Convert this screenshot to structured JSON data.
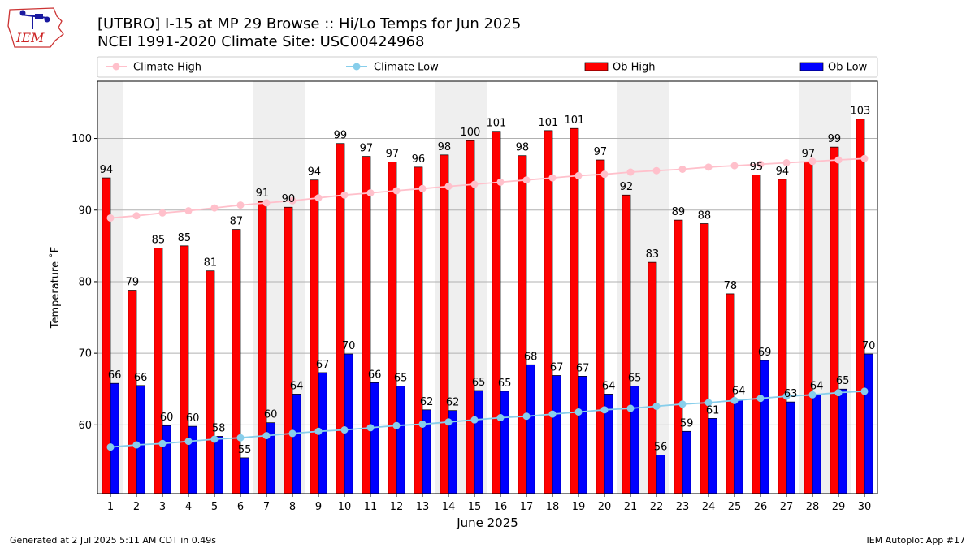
{
  "logo": {
    "text": "IEM"
  },
  "chart_data": {
    "type": "bar",
    "title": "[UTBRO] I-15 at MP 29 Browse  :: Hi/Lo Temps for Jun 2025",
    "subtitle": "NCEI 1991-2020 Climate Site: USC00424968",
    "xlabel": "June 2025",
    "ylabel": "Temperature ˚F",
    "ylim": [
      50.4,
      108.0
    ],
    "yticks": [
      60,
      70,
      80,
      90,
      100
    ],
    "grid": true,
    "legend_position": "top",
    "categories": [
      "1",
      "2",
      "3",
      "4",
      "5",
      "6",
      "7",
      "8",
      "9",
      "10",
      "11",
      "12",
      "13",
      "14",
      "15",
      "16",
      "17",
      "18",
      "19",
      "20",
      "21",
      "22",
      "23",
      "24",
      "25",
      "26",
      "27",
      "28",
      "29",
      "30"
    ],
    "weekend_bands": [
      [
        1,
        1
      ],
      [
        7,
        8
      ],
      [
        14,
        15
      ],
      [
        21,
        22
      ],
      [
        28,
        29
      ]
    ],
    "series": [
      {
        "name": "Ob High",
        "kind": "bar",
        "color": "#ff0000",
        "values": [
          94.5,
          78.8,
          84.7,
          85.0,
          81.5,
          87.3,
          91.2,
          90.4,
          94.2,
          99.3,
          97.5,
          96.7,
          96.0,
          97.7,
          99.7,
          101.0,
          97.6,
          101.1,
          101.4,
          97.0,
          92.1,
          82.7,
          88.6,
          88.1,
          78.3,
          94.9,
          94.3,
          96.7,
          98.8,
          102.7
        ],
        "labels": [
          "94",
          "79",
          "85",
          "85",
          "81",
          "87",
          "91",
          "90",
          "94",
          "99",
          "97",
          "97",
          "96",
          "98",
          "100",
          "101",
          "98",
          "101",
          "101",
          "97",
          "92",
          "83",
          "89",
          "88",
          "78",
          "95",
          "94",
          "97",
          "99",
          "103"
        ]
      },
      {
        "name": "Ob Low",
        "kind": "bar",
        "color": "#0000ff",
        "values": [
          65.8,
          65.5,
          59.9,
          59.8,
          58.4,
          55.4,
          60.3,
          64.3,
          67.3,
          69.9,
          65.9,
          65.4,
          62.1,
          62.0,
          64.8,
          64.7,
          68.4,
          66.9,
          66.8,
          64.3,
          65.4,
          55.8,
          59.1,
          60.9,
          63.6,
          69.0,
          63.2,
          64.3,
          65.0,
          69.9
        ],
        "labels": [
          "66",
          "66",
          "60",
          "60",
          "58",
          "55",
          "60",
          "64",
          "67",
          "70",
          "66",
          "65",
          "62",
          "62",
          "65",
          "65",
          "68",
          "67",
          "67",
          "64",
          "65",
          "56",
          "59",
          "61",
          "64",
          "69",
          "63",
          "64",
          "65",
          "70"
        ]
      },
      {
        "name": "Climate High",
        "kind": "line",
        "color": "#ffc0cb",
        "values": [
          88.9,
          89.2,
          89.6,
          89.9,
          90.3,
          90.7,
          91.0,
          91.3,
          91.7,
          92.1,
          92.4,
          92.7,
          93.0,
          93.3,
          93.6,
          93.9,
          94.2,
          94.5,
          94.8,
          95.0,
          95.3,
          95.5,
          95.7,
          96.0,
          96.2,
          96.4,
          96.6,
          96.8,
          97.0,
          97.2
        ]
      },
      {
        "name": "Climate Low",
        "kind": "line",
        "color": "#87ceeb",
        "values": [
          56.9,
          57.2,
          57.4,
          57.7,
          58.0,
          58.2,
          58.5,
          58.8,
          59.1,
          59.3,
          59.6,
          59.9,
          60.1,
          60.4,
          60.7,
          61.0,
          61.2,
          61.5,
          61.8,
          62.1,
          62.3,
          62.6,
          62.9,
          63.1,
          63.4,
          63.7,
          64.0,
          64.2,
          64.5,
          64.7
        ]
      }
    ],
    "legend": [
      "Climate High",
      "Climate Low",
      "Ob High",
      "Ob Low"
    ]
  },
  "footer": {
    "generated": "Generated at 2 Jul 2025 5:11 AM CDT in 0.49s",
    "app": "IEM Autoplot App #17"
  }
}
